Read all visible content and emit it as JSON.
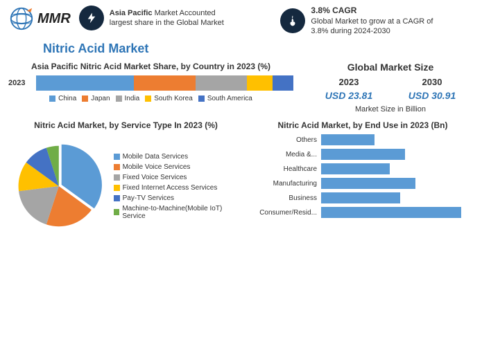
{
  "header": {
    "logo_text": "MMR",
    "fact1": {
      "bold": "Asia Pacific",
      "rest": " Market Accounted largest share in the Global Market"
    },
    "fact2": {
      "title": "3.8% CAGR",
      "rest": "Global Market to grow at a CAGR of 3.8% during 2024-2030"
    }
  },
  "main_title": "Nitric Acid Market",
  "stacked": {
    "title": "Asia Pacific Nitric Acid Market Share, by Country in 2023 (%)",
    "year": "2023",
    "segments": [
      {
        "label": "China",
        "value": 38,
        "color": "#5b9bd5"
      },
      {
        "label": "Japan",
        "value": 24,
        "color": "#ed7d31"
      },
      {
        "label": "India",
        "value": 20,
        "color": "#a5a5a5"
      },
      {
        "label": "South Korea",
        "value": 10,
        "color": "#ffc000"
      },
      {
        "label": "South America",
        "value": 8,
        "color": "#4472c4"
      }
    ]
  },
  "market_size": {
    "title": "Global Market Size",
    "cols": [
      {
        "year": "2023",
        "value": "USD 23.81"
      },
      {
        "year": "2030",
        "value": "USD 30.91"
      }
    ],
    "note": "Market Size in Billion"
  },
  "pie": {
    "title": "Nitric Acid Market, by Service Type In 2023 (%)",
    "slices": [
      {
        "label": "Mobile Data Services",
        "value": 35,
        "color": "#5b9bd5"
      },
      {
        "label": "Mobile Voice Services",
        "value": 20,
        "color": "#ed7d31"
      },
      {
        "label": "Fixed Voice Services",
        "value": 18,
        "color": "#a5a5a5"
      },
      {
        "label": "Fixed Internet Access Services",
        "value": 12,
        "color": "#ffc000"
      },
      {
        "label": "Pay-TV Services",
        "value": 10,
        "color": "#4472c4"
      },
      {
        "label": "Machine-to-Machine(Mobile IoT) Service",
        "value": 5,
        "color": "#70ad47"
      }
    ]
  },
  "hbar": {
    "title": "Nitric Acid Market, by End Use in 2023 (Bn)",
    "color": "#5b9bd5",
    "max": 100,
    "rows": [
      {
        "label": "Others",
        "value": 35
      },
      {
        "label": "Media &...",
        "value": 55
      },
      {
        "label": "Healthcare",
        "value": 45
      },
      {
        "label": "Manufacturing",
        "value": 62
      },
      {
        "label": "Business",
        "value": 52
      },
      {
        "label": "Consumer/Resid...",
        "value": 92
      }
    ]
  },
  "colors": {
    "accent": "#2e75b6",
    "dark": "#15293f"
  }
}
